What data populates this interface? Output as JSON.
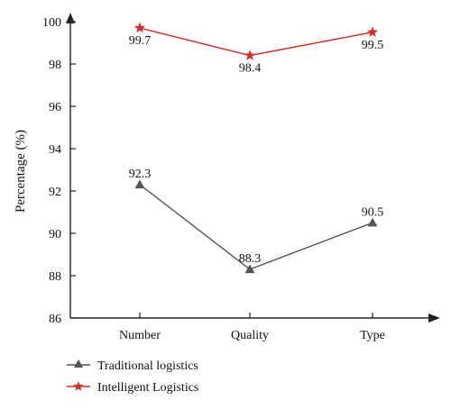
{
  "chart_data": {
    "type": "line",
    "categories": [
      "Number",
      "Quality",
      "Type"
    ],
    "ylabel": "Percentage (%)",
    "xlabel": "",
    "ylim": [
      86,
      100
    ],
    "yticks": [
      "86",
      "88",
      "90",
      "92",
      "94",
      "96",
      "98",
      "100"
    ],
    "grid": false,
    "legend_position": "bottom-left",
    "series": [
      {
        "name": "Traditional logistics",
        "values": [
          92.3,
          88.3,
          90.5
        ],
        "labels": [
          "92.3",
          "88.3",
          "90.5"
        ],
        "color": "#555555",
        "marker": "triangle"
      },
      {
        "name": "Intelligent Logistics",
        "values": [
          99.7,
          98.4,
          99.5
        ],
        "labels": [
          "99.7",
          "98.4",
          "99.5"
        ],
        "color": "#d62a2a",
        "marker": "star"
      }
    ]
  }
}
